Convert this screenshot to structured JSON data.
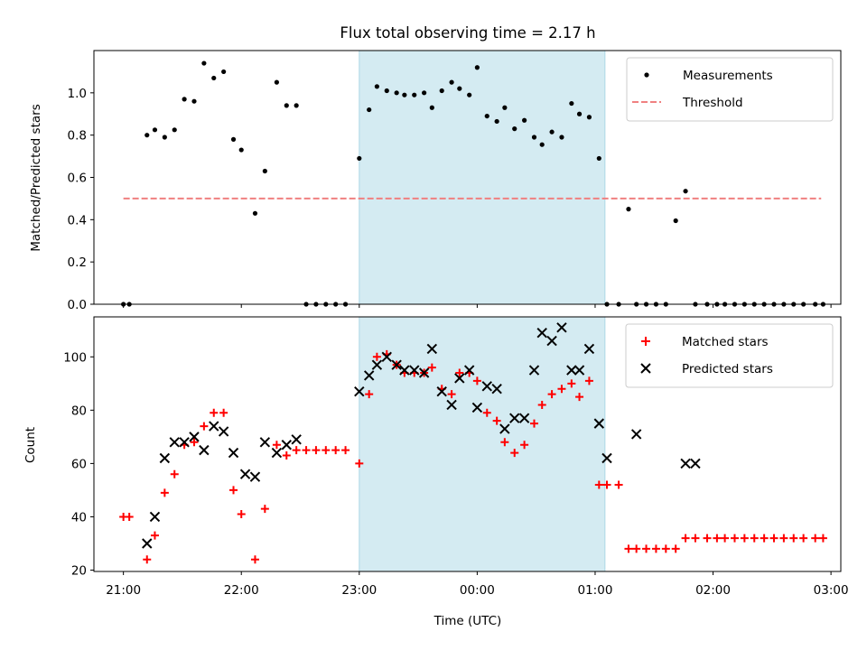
{
  "chart_data": [
    {
      "type": "scatter",
      "title": "Flux total observing time = 2.17 h",
      "xlabel": "",
      "ylabel": "Matched/Predicted stars",
      "xlim": [
        "20:45",
        "03:05"
      ],
      "ylim": [
        0,
        1.2
      ],
      "yticks": [
        0.0,
        0.2,
        0.4,
        0.6,
        0.8,
        1.0
      ],
      "highlight_span": [
        "23:00",
        "01:05"
      ],
      "highlight_color": "#add8e6",
      "legend_position": "top-right",
      "legend": [
        {
          "label": "Measurements",
          "marker": "dot",
          "color": "#000000"
        },
        {
          "label": "Threshold",
          "marker": "dashed-line",
          "color": "#f08080"
        }
      ],
      "threshold": {
        "y": 0.5,
        "x_range": [
          "21:00",
          "02:55"
        ],
        "color": "#f08080"
      },
      "series": [
        {
          "name": "Measurements",
          "color": "#000000",
          "x": [
            "21:00",
            "21:03",
            "21:12",
            "21:16",
            "21:21",
            "21:26",
            "21:31",
            "21:36",
            "21:41",
            "21:46",
            "21:51",
            "21:56",
            "22:00",
            "22:07",
            "22:12",
            "22:18",
            "22:23",
            "22:28",
            "22:33",
            "22:38",
            "22:43",
            "22:48",
            "22:53",
            "23:00",
            "23:05",
            "23:09",
            "23:14",
            "23:19",
            "23:23",
            "23:28",
            "23:33",
            "23:37",
            "23:42",
            "23:47",
            "23:51",
            "23:56",
            "00:00",
            "00:05",
            "00:10",
            "00:14",
            "00:19",
            "00:24",
            "00:29",
            "00:33",
            "00:38",
            "00:43",
            "00:48",
            "00:52",
            "00:57",
            "01:02",
            "01:06",
            "01:12",
            "01:17",
            "01:21",
            "01:26",
            "01:31",
            "01:36",
            "01:41",
            "01:46",
            "01:51",
            "01:57",
            "02:02",
            "02:06",
            "02:11",
            "02:16",
            "02:21",
            "02:26",
            "02:31",
            "02:36",
            "02:41",
            "02:46",
            "02:52",
            "02:56"
          ],
          "y": [
            0.0,
            0.0,
            0.8,
            0.825,
            0.79,
            0.825,
            0.97,
            0.96,
            1.14,
            1.07,
            1.1,
            0.78,
            0.73,
            0.43,
            0.63,
            1.05,
            0.94,
            0.94,
            0.0,
            0.0,
            0.0,
            0.0,
            0.0,
            0.69,
            0.92,
            1.03,
            1.01,
            1.0,
            0.99,
            0.99,
            1.0,
            0.93,
            1.01,
            1.05,
            1.02,
            0.99,
            1.12,
            0.89,
            0.865,
            0.93,
            0.83,
            0.87,
            0.79,
            0.755,
            0.815,
            0.79,
            0.95,
            0.9,
            0.885,
            0.69,
            0.0,
            0.0,
            0.45,
            0.0,
            0.0,
            0.0,
            0.0,
            0.395,
            0.535,
            0.0,
            0.0,
            0.0,
            0.0,
            0.0,
            0.0,
            0.0,
            0.0,
            0.0,
            0.0,
            0.0,
            0.0,
            0.0,
            0.0
          ]
        }
      ]
    },
    {
      "type": "scatter",
      "title": "",
      "xlabel": "Time (UTC)",
      "ylabel": "Count",
      "xlim": [
        "20:45",
        "03:05"
      ],
      "ylim": [
        19.5,
        115
      ],
      "yticks": [
        20,
        40,
        60,
        80,
        100
      ],
      "xticks": [
        "21:00",
        "22:00",
        "23:00",
        "00:00",
        "01:00",
        "02:00",
        "03:00"
      ],
      "highlight_span": [
        "23:00",
        "01:05"
      ],
      "highlight_color": "#add8e6",
      "legend_position": "top-right",
      "legend": [
        {
          "label": "Matched stars",
          "marker": "plus",
          "color": "#ff0000"
        },
        {
          "label": "Predicted stars",
          "marker": "x",
          "color": "#000000"
        }
      ],
      "series": [
        {
          "name": "Matched stars",
          "color": "#ff0000",
          "marker": "plus",
          "x": [
            "21:00",
            "21:03",
            "21:12",
            "21:16",
            "21:21",
            "21:26",
            "21:31",
            "21:36",
            "21:41",
            "21:46",
            "21:51",
            "21:56",
            "22:00",
            "22:07",
            "22:12",
            "22:18",
            "22:23",
            "22:28",
            "22:33",
            "22:38",
            "22:43",
            "22:48",
            "22:53",
            "23:00",
            "23:05",
            "23:09",
            "23:14",
            "23:19",
            "23:23",
            "23:28",
            "23:33",
            "23:37",
            "23:42",
            "23:47",
            "23:51",
            "23:56",
            "00:00",
            "00:05",
            "00:10",
            "00:14",
            "00:19",
            "00:24",
            "00:29",
            "00:33",
            "00:38",
            "00:43",
            "00:48",
            "00:52",
            "00:57",
            "01:02",
            "01:06",
            "01:12",
            "01:17",
            "01:21",
            "01:26",
            "01:31",
            "01:36",
            "01:41",
            "01:46",
            "01:51",
            "01:57",
            "02:02",
            "02:06",
            "02:11",
            "02:16",
            "02:21",
            "02:26",
            "02:31",
            "02:36",
            "02:41",
            "02:46",
            "02:52",
            "02:56"
          ],
          "y": [
            40,
            40,
            24,
            33,
            49,
            56,
            67,
            68,
            74,
            79,
            79,
            50,
            41,
            24,
            43,
            67,
            63,
            65,
            65,
            65,
            65,
            65,
            65,
            60,
            86,
            100,
            101,
            97,
            94,
            94,
            94,
            96,
            88,
            86,
            94,
            94,
            91,
            79,
            76,
            68,
            64,
            67,
            75,
            82,
            86,
            88,
            90,
            85,
            91,
            52,
            52,
            52,
            28,
            28,
            28,
            28,
            28,
            28,
            32,
            32,
            32,
            32,
            32,
            32,
            32,
            32,
            32,
            32,
            32,
            32,
            32,
            32,
            32
          ]
        },
        {
          "name": "Predicted stars",
          "color": "#000000",
          "marker": "x",
          "x": [
            "21:12",
            "21:16",
            "21:21",
            "21:26",
            "21:31",
            "21:36",
            "21:41",
            "21:46",
            "21:51",
            "21:56",
            "22:02",
            "22:07",
            "22:12",
            "22:18",
            "22:23",
            "22:28",
            "23:00",
            "23:05",
            "23:09",
            "23:14",
            "23:19",
            "23:23",
            "23:28",
            "23:33",
            "23:37",
            "23:42",
            "23:47",
            "23:51",
            "23:56",
            "00:00",
            "00:05",
            "00:10",
            "00:14",
            "00:19",
            "00:24",
            "00:29",
            "00:33",
            "00:38",
            "00:43",
            "00:48",
            "00:52",
            "00:57",
            "01:02",
            "01:06",
            "01:21",
            "01:46",
            "01:51"
          ],
          "y": [
            30,
            40,
            62,
            68,
            68,
            70,
            65,
            74,
            72,
            64,
            56,
            55,
            68,
            64,
            67,
            69,
            87,
            93,
            97,
            100,
            97,
            95,
            95,
            94,
            103,
            87,
            82,
            92,
            95,
            81,
            89,
            88,
            73,
            77,
            77,
            95,
            109,
            106,
            111,
            95,
            95,
            103,
            75,
            62,
            71,
            60,
            60
          ]
        }
      ]
    }
  ]
}
